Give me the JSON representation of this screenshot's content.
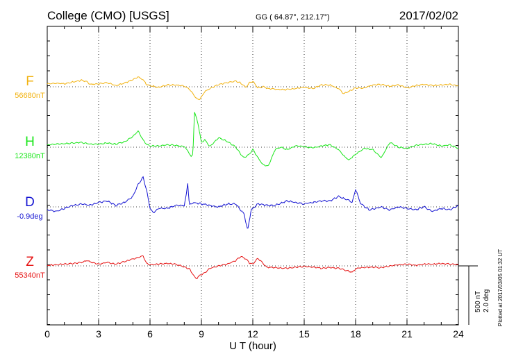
{
  "header": {
    "station": "College (CMO)  [USGS]",
    "coords": "GG ( 64.87°, 212.17°)",
    "date": "2017/02/02"
  },
  "footer_note": "Plotted at 2017/03/05 01:32 UT",
  "scale_bar": {
    "nt_label": "500 nT",
    "deg_label": "2.0 deg",
    "nt_value": 500,
    "deg_value": 2.0
  },
  "chart_data": {
    "type": "line",
    "xlabel": "U T (hour)",
    "xlim": [
      0,
      24
    ],
    "x_ticks": [
      0,
      3,
      6,
      9,
      12,
      15,
      18,
      21,
      24
    ],
    "grid": true,
    "y_units_per_panel": "nT / deg offsets from baseline (scale bar: 500 nT, 2.0 deg)",
    "series": [
      {
        "name": "F",
        "baseline_label": "56680nT",
        "color": "#f2b20f",
        "x": [
          0,
          0.5,
          1,
          1.5,
          2,
          2.3,
          2.5,
          3,
          3.5,
          4,
          4.5,
          5,
          5.3,
          5.6,
          5.8,
          6,
          6.5,
          7,
          7.5,
          8,
          8.3,
          8.5,
          8.7,
          8.9,
          9.2,
          9.5,
          10,
          10.5,
          11,
          11.3,
          11.6,
          11.8,
          12,
          12.3,
          12.6,
          12.9,
          13.3,
          13.8,
          14.5,
          15,
          15.5,
          16,
          16.5,
          17,
          17.3,
          17.6,
          18,
          18.5,
          19,
          19.5,
          20,
          20.5,
          21,
          21.5,
          22,
          22.5,
          23,
          23.5,
          24
        ],
        "y": [
          25,
          30,
          25,
          40,
          55,
          45,
          20,
          25,
          35,
          10,
          30,
          60,
          85,
          60,
          20,
          10,
          -5,
          15,
          15,
          5,
          -20,
          -55,
          -100,
          -110,
          -40,
          -15,
          20,
          35,
          50,
          30,
          -5,
          35,
          45,
          -10,
          0,
          -15,
          -20,
          -25,
          -15,
          -5,
          -15,
          15,
          15,
          -15,
          -60,
          -40,
          -10,
          -10,
          15,
          20,
          5,
          15,
          -10,
          10,
          20,
          10,
          15,
          20,
          10
        ]
      },
      {
        "name": "H",
        "baseline_label": "12380nT",
        "color": "#19e619",
        "x": [
          0,
          0.5,
          1,
          1.5,
          2,
          2.5,
          3,
          3.5,
          4,
          4.5,
          5,
          5.3,
          5.6,
          5.8,
          6,
          6.5,
          7,
          7.5,
          8,
          8.2,
          8.4,
          8.5,
          8.6,
          8.8,
          9,
          9.2,
          9.5,
          10,
          10.5,
          11,
          11.3,
          11.5,
          11.8,
          12,
          12.3,
          12.6,
          12.9,
          13.3,
          13.6,
          14,
          14.5,
          15,
          15.5,
          16,
          16.5,
          17,
          17.3,
          17.6,
          18,
          18.5,
          19,
          19.5,
          20,
          20.5,
          21,
          21.5,
          22,
          22.5,
          23,
          23.5,
          24
        ],
        "y": [
          20,
          25,
          30,
          35,
          40,
          25,
          25,
          35,
          25,
          45,
          90,
          140,
          60,
          25,
          10,
          10,
          20,
          15,
          5,
          -30,
          -80,
          -60,
          300,
          200,
          40,
          60,
          5,
          80,
          50,
          0,
          -60,
          -90,
          -60,
          -20,
          -90,
          -150,
          -160,
          -20,
          0,
          -20,
          10,
          5,
          -5,
          10,
          20,
          -20,
          -70,
          -110,
          -60,
          -10,
          -20,
          -90,
          40,
          0,
          -10,
          15,
          25,
          30,
          10,
          20,
          -10
        ]
      },
      {
        "name": "D",
        "baseline_label": "-0.9deg",
        "color": "#1414d2",
        "x": [
          0,
          0.5,
          1,
          1.5,
          2,
          2.5,
          3,
          3.5,
          4,
          4.5,
          5,
          5.3,
          5.6,
          5.8,
          6,
          6.2,
          6.5,
          7,
          7.5,
          8,
          8.1,
          8.2,
          8.3,
          8.5,
          9,
          9.5,
          10,
          10.5,
          11,
          11.5,
          11.7,
          11.9,
          12.3,
          12.8,
          13.3,
          14,
          14.5,
          15,
          15.5,
          16,
          16.5,
          17,
          17.5,
          17.8,
          18,
          18.3,
          18.8,
          19.5,
          20,
          20.5,
          21,
          21.5,
          22,
          22.5,
          23,
          23.5,
          24
        ],
        "y": [
          -0.1,
          -0.15,
          -0.05,
          0.05,
          0.1,
          0.05,
          0.15,
          0.2,
          0.05,
          0.15,
          0.35,
          0.75,
          1.0,
          0.55,
          -0.05,
          -0.2,
          -0.05,
          -0.05,
          0.05,
          0.05,
          0.35,
          0.8,
          0.05,
          0.15,
          0.1,
          0.05,
          0,
          0.1,
          0.1,
          -0.25,
          -0.8,
          -0.1,
          0.1,
          0.05,
          0.05,
          0.2,
          0.15,
          0.1,
          0.15,
          0.2,
          0.2,
          0.35,
          0.25,
          0.15,
          0.6,
          0.1,
          -0.1,
          0,
          -0.1,
          0,
          -0.05,
          -0.1,
          0,
          -0.15,
          -0.05,
          -0.1,
          0.05
        ]
      },
      {
        "name": "Z",
        "baseline_label": "55340nT",
        "color": "#e61414",
        "x": [
          0,
          0.5,
          1,
          1.5,
          2,
          2.3,
          2.7,
          3,
          3.5,
          4,
          4.5,
          5,
          5.3,
          5.6,
          5.8,
          6,
          6.5,
          7,
          7.5,
          8,
          8.3,
          8.5,
          8.7,
          8.9,
          9.2,
          9.5,
          10,
          10.5,
          11,
          11.3,
          11.6,
          11.8,
          12,
          12.3,
          12.5,
          12.8,
          13.3,
          14,
          14.5,
          15,
          15.5,
          16,
          16.5,
          17,
          17.5,
          17.8,
          18,
          18.3,
          18.8,
          19.5,
          20,
          20.5,
          21,
          21.5,
          22,
          22.5,
          23,
          23.5,
          24
        ],
        "y": [
          5,
          10,
          15,
          20,
          30,
          45,
          25,
          15,
          30,
          15,
          35,
          60,
          70,
          85,
          20,
          10,
          15,
          20,
          15,
          -10,
          -25,
          -70,
          -110,
          -80,
          -60,
          -20,
          0,
          15,
          45,
          80,
          60,
          25,
          15,
          65,
          35,
          -10,
          -15,
          -20,
          -10,
          -5,
          -10,
          -20,
          -15,
          -20,
          -40,
          -55,
          -25,
          -15,
          -10,
          -15,
          0,
          10,
          15,
          5,
          15,
          15,
          20,
          15,
          10
        ]
      }
    ]
  }
}
